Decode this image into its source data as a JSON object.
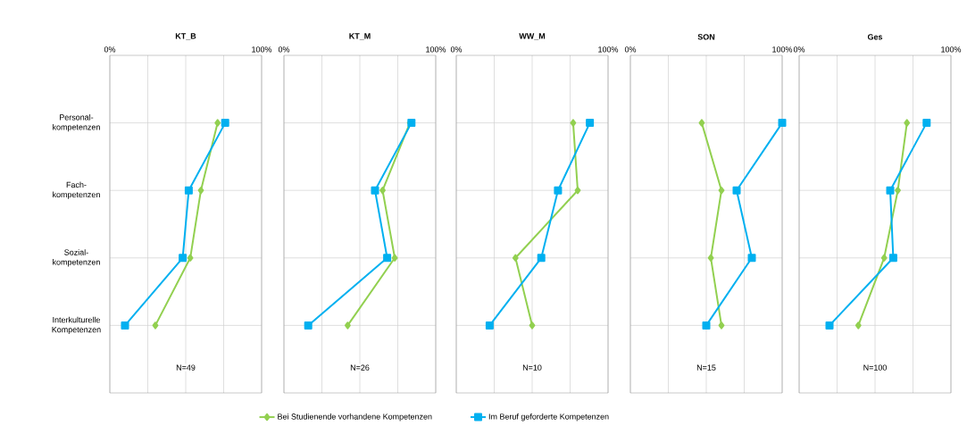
{
  "chart_data": [
    {
      "type": "line",
      "orientation": "horizontal",
      "title": "KT_B",
      "categories": [
        "Personal- kompetenzen",
        "Fach- kompetenzen",
        "Sozial- kompetenzen",
        "Interkulturelle Kompetenzen"
      ],
      "xlim": [
        0,
        100
      ],
      "xticks": [
        {
          "value": 0,
          "label": "0%"
        },
        {
          "value": 25,
          "label": null
        },
        {
          "value": 50,
          "label": null
        },
        {
          "value": 75,
          "label": null
        },
        {
          "value": 100,
          "label": "100%"
        }
      ],
      "grid": true,
      "legend": "bottom",
      "annotations": [
        "N=49"
      ],
      "series": [
        {
          "name": "Bei Studienende vorhandene Kompetenzen",
          "color": "#92d050",
          "marker": "diamond",
          "values": [
            71,
            60,
            53,
            30
          ]
        },
        {
          "name": "Im Beruf geforderte Kompetenzen",
          "color": "#00b0f0",
          "marker": "square",
          "values": [
            76,
            52,
            48,
            10
          ]
        }
      ]
    },
    {
      "type": "line",
      "orientation": "horizontal",
      "title": "KT_M",
      "categories": [
        null,
        null,
        null,
        null
      ],
      "tick_labels": "x",
      "xlim": [
        0,
        100
      ],
      "xticks": [
        {
          "value": 0,
          "label": "0%"
        },
        {
          "value": 25,
          "label": null
        },
        {
          "value": 50,
          "label": null
        },
        {
          "value": 75,
          "label": null
        },
        {
          "value": 100,
          "label": "100%"
        }
      ],
      "grid": true,
      "annotations": [
        "N=26"
      ],
      "series": [
        {
          "color": "#92d050",
          "marker": "diamond",
          "values": [
            83,
            65,
            73,
            42
          ]
        },
        {
          "color": "#00b0f0",
          "marker": "square",
          "values": [
            84,
            60,
            68,
            16
          ]
        }
      ]
    },
    {
      "type": "line",
      "orientation": "horizontal",
      "title": "WW_M",
      "categories": [
        null,
        null,
        null,
        null
      ],
      "tick_labels": "x",
      "xlim": [
        0,
        100
      ],
      "xticks": [
        {
          "value": 0,
          "label": "0%"
        },
        {
          "value": 25,
          "label": null
        },
        {
          "value": 50,
          "label": null
        },
        {
          "value": 75,
          "label": null
        },
        {
          "value": 100,
          "label": "100%"
        }
      ],
      "grid": true,
      "annotations": [
        "N=10"
      ],
      "series": [
        {
          "color": "#92d050",
          "marker": "diamond",
          "values": [
            77,
            80,
            39,
            50
          ]
        },
        {
          "color": "#00b0f0",
          "marker": "square",
          "values": [
            88,
            67,
            56,
            22
          ]
        }
      ]
    },
    {
      "type": "line",
      "orientation": "horizontal",
      "title": "SON",
      "categories": [
        null,
        null,
        null,
        null
      ],
      "tick_labels": "x",
      "xlim": [
        0,
        100
      ],
      "xticks": [
        {
          "value": 0,
          "label": "0%"
        },
        {
          "value": 25,
          "label": null
        },
        {
          "value": 50,
          "label": null
        },
        {
          "value": 75,
          "label": null
        },
        {
          "value": 100,
          "label": "100%"
        }
      ],
      "grid": true,
      "annotations": [
        "N=15"
      ],
      "series": [
        {
          "color": "#92d050",
          "marker": "diamond",
          "values": [
            47,
            60,
            53,
            60
          ]
        },
        {
          "color": "#00b0f0",
          "marker": "square",
          "values": [
            100,
            70,
            80,
            50
          ]
        }
      ]
    },
    {
      "type": "line",
      "orientation": "horizontal",
      "title": "Ges",
      "categories": [
        null,
        null,
        null,
        null
      ],
      "tick_labels": "x",
      "xlim": [
        0,
        100
      ],
      "xticks": [
        {
          "value": 0,
          "label": "0%"
        },
        {
          "value": 25,
          "label": null
        },
        {
          "value": 50,
          "label": null
        },
        {
          "value": 75,
          "label": null
        },
        {
          "value": 100,
          "label": "100%"
        }
      ],
      "grid": true,
      "annotations": [
        "N=100"
      ],
      "series": [
        {
          "color": "#92d050",
          "marker": "diamond",
          "values": [
            71,
            65,
            56,
            39
          ]
        },
        {
          "color": "#00b0f0",
          "marker": "square",
          "values": [
            84,
            60,
            62,
            20
          ]
        }
      ]
    }
  ]
}
